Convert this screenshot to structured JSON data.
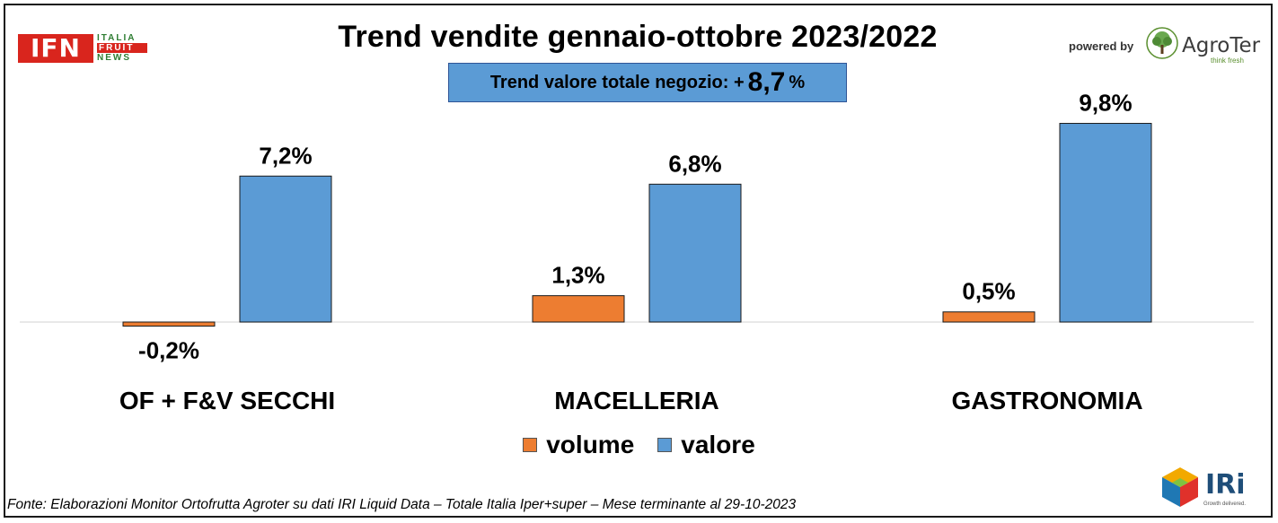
{
  "header": {
    "title": "Trend vendite gennaio-ottobre 2023/2022",
    "trend_prefix": "Trend valore totale negozio: +",
    "trend_value": "8,7",
    "trend_suffix": "%"
  },
  "logos": {
    "ifn_main": "IFN",
    "ifn_line1": "ITALIA",
    "ifn_line2": "FRUIT",
    "ifn_line3": "NEWS",
    "powered_by": "powered by",
    "agroter": "AgroTer",
    "agroter_tagline": "think fresh",
    "iri": "IRi",
    "iri_tagline": "Growth delivered."
  },
  "colors": {
    "volume": "#ed7d31",
    "valore": "#5b9bd5",
    "ifn_red": "#d9251d",
    "agroter_green": "#5a8f2e"
  },
  "chart_data": {
    "type": "bar",
    "categories": [
      "OF + F&V SECCHI",
      "MACELLERIA",
      "GASTRONOMIA"
    ],
    "series": [
      {
        "name": "volume",
        "values": [
          -0.2,
          1.3,
          0.5
        ],
        "labels": [
          "-0,2%",
          "1,3%",
          "0,5%"
        ]
      },
      {
        "name": "valore",
        "values": [
          7.2,
          6.8,
          9.8
        ],
        "labels": [
          "7,2%",
          "6,8%",
          "9,8%"
        ]
      }
    ],
    "legend_position": "bottom",
    "grid": false
  },
  "legend": {
    "volume": "volume",
    "valore": "valore"
  },
  "footer": {
    "source": "Fonte: Elaborazioni Monitor Ortofrutta Agroter su dati IRI Liquid Data – Totale Italia Iper+super – Mese terminante al 29-10-2023"
  }
}
